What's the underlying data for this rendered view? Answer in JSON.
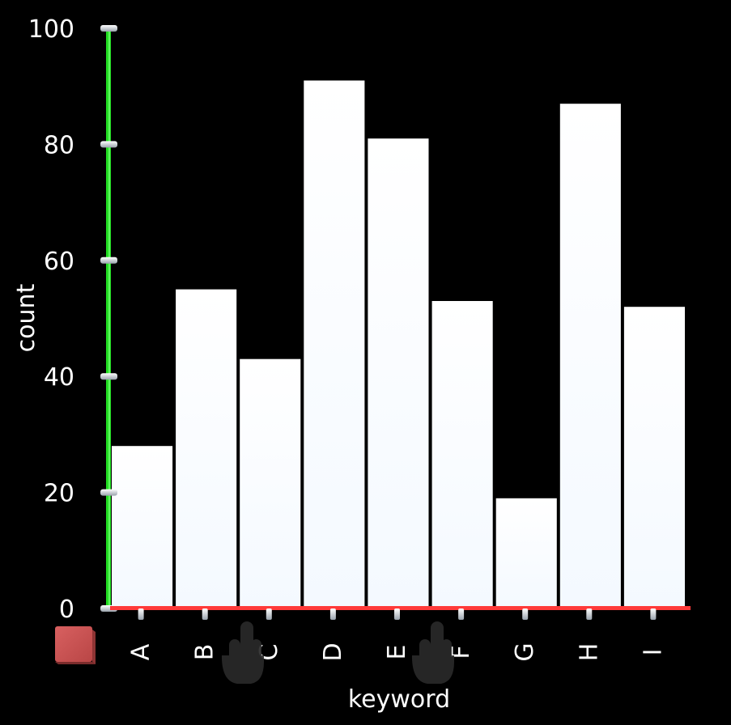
{
  "chart_data": {
    "type": "bar",
    "categories": [
      "A",
      "B",
      "C",
      "D",
      "E",
      "F",
      "G",
      "H",
      "I"
    ],
    "values": [
      28,
      55,
      43,
      91,
      81,
      53,
      19,
      87,
      52
    ],
    "xlabel": "keyword",
    "ylabel": "count",
    "ylim": [
      0,
      100
    ],
    "yticks": [
      0,
      20,
      40,
      60,
      80,
      100
    ],
    "grid": false,
    "colors": {
      "background": "#000000",
      "bar": "#ffffff",
      "bar_bottom": "#f4f9ff",
      "y_axis": "#22dd22",
      "x_axis": "#ff3a3a",
      "tick_knob": "#e8ecf2",
      "legend_swatch": "#c95353",
      "cursor": "#2a2a2a"
    },
    "icons": [
      "legend-swatch-icon",
      "hand-cursor-icon"
    ]
  }
}
